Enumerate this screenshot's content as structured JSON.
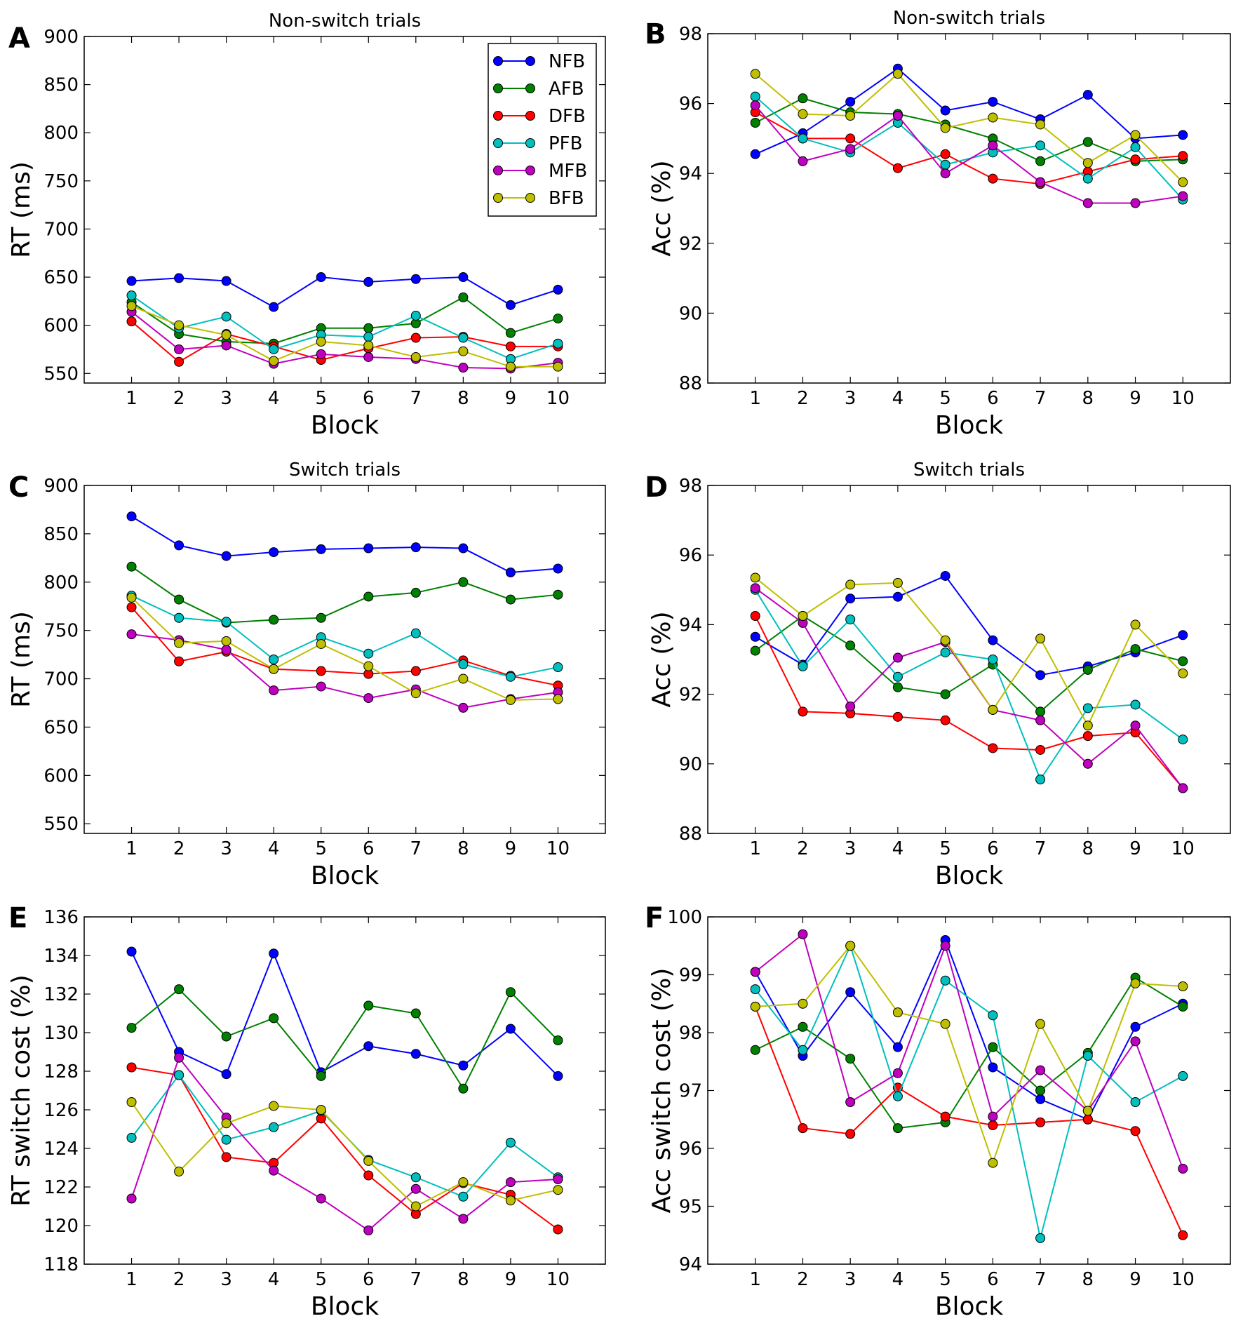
{
  "legend": [
    {
      "name": "NFB",
      "color": "#0000ff"
    },
    {
      "name": "AFB",
      "color": "#008000"
    },
    {
      "name": "DFB",
      "color": "#ff0000"
    },
    {
      "name": "PFB",
      "color": "#00bfbf"
    },
    {
      "name": "MFB",
      "color": "#bf00bf"
    },
    {
      "name": "BFB",
      "color": "#bfbf00"
    }
  ],
  "chart_data": [
    {
      "panel": "A",
      "type": "line",
      "title": "Non-switch trials",
      "xlabel": "Block",
      "ylabel": "RT (ms)",
      "x": [
        1,
        2,
        3,
        4,
        5,
        6,
        7,
        8,
        9,
        10
      ],
      "xlim": [
        0,
        11
      ],
      "ylim": [
        540,
        900
      ],
      "yticks": [
        550,
        600,
        650,
        700,
        750,
        800,
        850,
        900
      ],
      "legend_loc": "top-right",
      "series": [
        {
          "name": "NFB",
          "values": [
            646,
            649,
            646,
            619,
            650,
            645,
            648,
            650,
            621,
            637
          ]
        },
        {
          "name": "AFB",
          "values": [
            624,
            591,
            583,
            581,
            597,
            597,
            602,
            629,
            592,
            607
          ]
        },
        {
          "name": "DFB",
          "values": [
            604,
            562,
            591,
            578,
            564,
            576,
            587,
            588,
            578,
            578
          ]
        },
        {
          "name": "PFB",
          "values": [
            631,
            597,
            609,
            575,
            590,
            588,
            610,
            587,
            565,
            581
          ]
        },
        {
          "name": "MFB",
          "values": [
            614,
            575,
            579,
            560,
            570,
            567,
            565,
            556,
            555,
            561
          ]
        },
        {
          "name": "BFB",
          "values": [
            620,
            600,
            590,
            563,
            583,
            579,
            567,
            573,
            557,
            557
          ]
        }
      ]
    },
    {
      "panel": "B",
      "type": "line",
      "title": "Non-switch trials",
      "xlabel": "Block",
      "ylabel": "Acc (%)",
      "x": [
        1,
        2,
        3,
        4,
        5,
        6,
        7,
        8,
        9,
        10
      ],
      "xlim": [
        0,
        11
      ],
      "ylim": [
        88,
        98
      ],
      "yticks": [
        88,
        90,
        92,
        94,
        96,
        98
      ],
      "series": [
        {
          "name": "NFB",
          "values": [
            94.55,
            95.15,
            96.05,
            97.0,
            95.8,
            96.05,
            95.55,
            96.25,
            95.0,
            95.1
          ]
        },
        {
          "name": "AFB",
          "values": [
            95.45,
            96.15,
            95.75,
            95.7,
            95.4,
            95.0,
            94.35,
            94.9,
            94.35,
            94.4
          ]
        },
        {
          "name": "DFB",
          "values": [
            95.75,
            95.0,
            95.0,
            94.15,
            94.55,
            93.85,
            93.7,
            94.05,
            94.4,
            94.5
          ]
        },
        {
          "name": "PFB",
          "values": [
            96.2,
            95.0,
            94.6,
            95.45,
            94.25,
            94.6,
            94.8,
            93.85,
            94.75,
            93.25
          ]
        },
        {
          "name": "MFB",
          "values": [
            95.95,
            94.35,
            94.7,
            95.65,
            94.0,
            94.8,
            93.75,
            93.15,
            93.15,
            93.35
          ]
        },
        {
          "name": "BFB",
          "values": [
            96.85,
            95.7,
            95.65,
            96.85,
            95.3,
            95.6,
            95.4,
            94.3,
            95.1,
            93.75
          ]
        }
      ]
    },
    {
      "panel": "C",
      "type": "line",
      "title": "Switch trials",
      "xlabel": "Block",
      "ylabel": "RT (ms)",
      "x": [
        1,
        2,
        3,
        4,
        5,
        6,
        7,
        8,
        9,
        10
      ],
      "xlim": [
        0,
        11
      ],
      "ylim": [
        540,
        900
      ],
      "yticks": [
        550,
        600,
        650,
        700,
        750,
        800,
        850,
        900
      ],
      "series": [
        {
          "name": "NFB",
          "values": [
            868,
            838,
            827,
            831,
            834,
            835,
            836,
            835,
            810,
            814
          ]
        },
        {
          "name": "AFB",
          "values": [
            816,
            782,
            758,
            761,
            763,
            785,
            789,
            800,
            782,
            787
          ]
        },
        {
          "name": "DFB",
          "values": [
            774,
            718,
            728,
            710,
            708,
            705,
            708,
            719,
            703,
            693
          ]
        },
        {
          "name": "PFB",
          "values": [
            786,
            763,
            759,
            720,
            743,
            726,
            747,
            715,
            702,
            712
          ]
        },
        {
          "name": "MFB",
          "values": [
            746,
            740,
            730,
            688,
            692,
            680,
            689,
            670,
            679,
            686
          ]
        },
        {
          "name": "BFB",
          "values": [
            784,
            737,
            739,
            710,
            736,
            713,
            685,
            700,
            678,
            679
          ]
        }
      ]
    },
    {
      "panel": "D",
      "type": "line",
      "title": "Switch trials",
      "xlabel": "Block",
      "ylabel": "Acc (%)",
      "x": [
        1,
        2,
        3,
        4,
        5,
        6,
        7,
        8,
        9,
        10
      ],
      "xlim": [
        0,
        11
      ],
      "ylim": [
        88,
        98
      ],
      "yticks": [
        88,
        90,
        92,
        94,
        96,
        98
      ],
      "series": [
        {
          "name": "NFB",
          "values": [
            93.65,
            92.85,
            94.75,
            94.8,
            95.4,
            93.55,
            92.55,
            92.8,
            93.2,
            93.7
          ]
        },
        {
          "name": "AFB",
          "values": [
            93.25,
            94.25,
            93.4,
            92.2,
            92.0,
            92.85,
            91.5,
            92.7,
            93.3,
            92.95
          ]
        },
        {
          "name": "DFB",
          "values": [
            94.25,
            91.5,
            91.45,
            91.35,
            91.25,
            90.45,
            90.4,
            90.8,
            90.9,
            89.3
          ]
        },
        {
          "name": "PFB",
          "values": [
            95.0,
            92.8,
            94.15,
            92.5,
            93.2,
            93.0,
            89.55,
            91.6,
            91.7,
            90.7
          ]
        },
        {
          "name": "MFB",
          "values": [
            95.05,
            94.05,
            91.65,
            93.05,
            93.5,
            91.55,
            91.25,
            90.0,
            91.1,
            89.3
          ]
        },
        {
          "name": "BFB",
          "values": [
            95.35,
            94.25,
            95.15,
            95.2,
            93.55,
            91.55,
            93.6,
            91.1,
            94.0,
            92.6
          ]
        }
      ]
    },
    {
      "panel": "E",
      "type": "line",
      "title": "",
      "xlabel": "Block",
      "ylabel": "RT switch cost (%)",
      "x": [
        1,
        2,
        3,
        4,
        5,
        6,
        7,
        8,
        9,
        10
      ],
      "xlim": [
        0,
        11
      ],
      "ylim": [
        118,
        136
      ],
      "yticks": [
        118,
        120,
        122,
        124,
        126,
        128,
        130,
        132,
        134,
        136
      ],
      "series": [
        {
          "name": "NFB",
          "values": [
            134.2,
            129.0,
            127.85,
            134.1,
            127.95,
            129.3,
            128.9,
            128.3,
            130.2,
            127.75
          ]
        },
        {
          "name": "AFB",
          "values": [
            130.25,
            132.25,
            129.8,
            130.75,
            127.75,
            131.4,
            131.0,
            127.1,
            132.1,
            129.6
          ]
        },
        {
          "name": "DFB",
          "values": [
            128.2,
            127.8,
            123.55,
            123.25,
            125.55,
            122.6,
            120.6,
            122.2,
            121.6,
            119.8
          ]
        },
        {
          "name": "PFB",
          "values": [
            124.55,
            127.8,
            124.45,
            125.1,
            125.95,
            123.4,
            122.5,
            121.5,
            124.3,
            122.5
          ]
        },
        {
          "name": "MFB",
          "values": [
            121.4,
            128.7,
            125.6,
            122.85,
            121.4,
            119.75,
            121.9,
            120.35,
            122.25,
            122.4
          ]
        },
        {
          "name": "BFB",
          "values": [
            126.4,
            122.8,
            125.3,
            126.2,
            126.0,
            123.35,
            121.0,
            122.25,
            121.3,
            121.85
          ]
        }
      ]
    },
    {
      "panel": "F",
      "type": "line",
      "title": "",
      "xlabel": "Block",
      "ylabel": "Acc switch cost (%)",
      "x": [
        1,
        2,
        3,
        4,
        5,
        6,
        7,
        8,
        9,
        10
      ],
      "xlim": [
        0,
        11
      ],
      "ylim": [
        94,
        100
      ],
      "yticks": [
        94,
        95,
        96,
        97,
        98,
        99,
        100
      ],
      "series": [
        {
          "name": "NFB",
          "values": [
            99.05,
            97.6,
            98.7,
            97.75,
            99.6,
            97.4,
            96.85,
            96.5,
            98.1,
            98.5
          ]
        },
        {
          "name": "AFB",
          "values": [
            97.7,
            98.1,
            97.55,
            96.35,
            96.45,
            97.75,
            97.0,
            97.65,
            98.95,
            98.45
          ]
        },
        {
          "name": "DFB",
          "values": [
            98.45,
            96.35,
            96.25,
            97.05,
            96.55,
            96.4,
            96.45,
            96.5,
            96.3,
            94.5
          ]
        },
        {
          "name": "PFB",
          "values": [
            98.75,
            97.7,
            99.5,
            96.9,
            98.9,
            98.3,
            94.45,
            97.6,
            96.8,
            97.25
          ]
        },
        {
          "name": "MFB",
          "values": [
            99.05,
            99.7,
            96.8,
            97.3,
            99.5,
            96.55,
            97.35,
            96.65,
            97.85,
            95.65
          ]
        },
        {
          "name": "BFB",
          "values": [
            98.45,
            98.5,
            99.5,
            98.35,
            98.15,
            95.75,
            98.15,
            96.65,
            98.85,
            98.8
          ]
        }
      ]
    }
  ]
}
